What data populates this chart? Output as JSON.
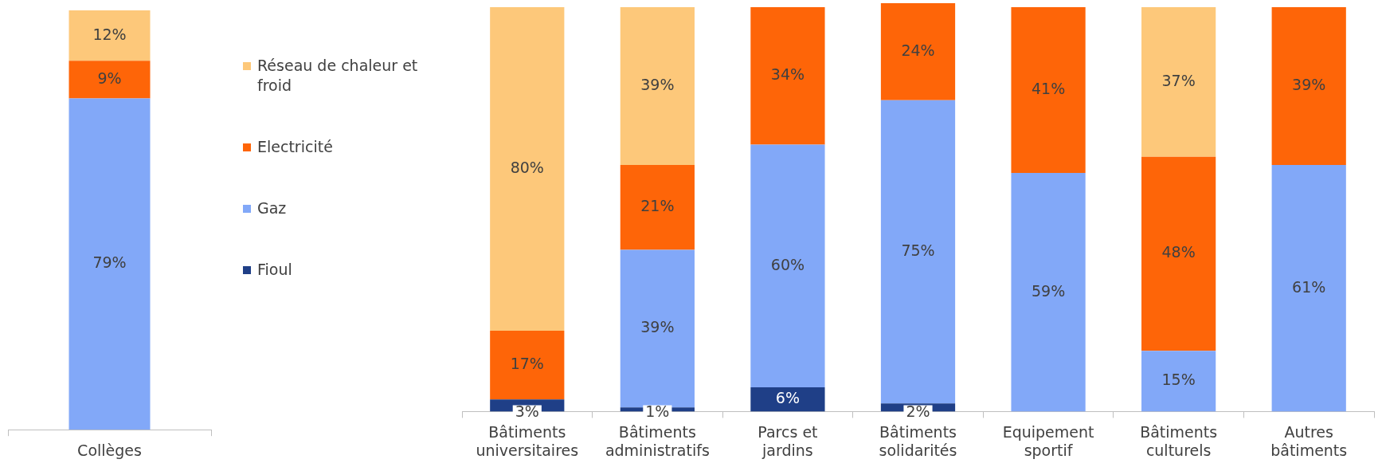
{
  "chart_data": [
    {
      "type": "bar",
      "stacked": true,
      "categories": [
        "Collèges"
      ],
      "legend": "right",
      "tick_labels": "x",
      "series": [
        {
          "name": "Fioul",
          "color": "#1f3f87",
          "values": [
            null
          ],
          "value_labels": [
            null
          ]
        },
        {
          "name": "Gaz",
          "color": "#82a8f8",
          "values": [
            79
          ],
          "value_labels": [
            "79%"
          ]
        },
        {
          "name": "Electricité",
          "color": "#fe6508",
          "values": [
            9
          ],
          "value_labels": [
            "9%"
          ]
        },
        {
          "name": "Réseau de chaleur et froid",
          "color": "#fdc87a",
          "values": [
            12
          ],
          "value_labels": [
            "12%"
          ]
        }
      ]
    },
    {
      "type": "bar",
      "stacked": true,
      "categories": [
        "Bâtiments universitaires",
        "Bâtiments administratifs",
        "Parcs et jardins",
        "Bâtiments solidarités",
        "Equipement sportif",
        "Bâtiments culturels",
        "Autres bâtiments"
      ],
      "legend": false,
      "tick_labels": "x",
      "series": [
        {
          "color": "#1f3f87",
          "values": [
            3,
            1,
            6,
            2,
            null,
            null,
            null
          ],
          "value_labels": [
            "3%",
            "1%",
            "6%",
            "2%",
            null,
            null,
            null
          ]
        },
        {
          "color": "#82a8f8",
          "values": [
            null,
            39,
            60,
            75,
            59,
            15,
            61
          ],
          "value_labels": [
            null,
            "39%",
            "60%",
            "75%",
            "59%",
            "15%",
            "61%"
          ]
        },
        {
          "color": "#fe6508",
          "values": [
            17,
            21,
            34,
            24,
            41,
            48,
            39
          ],
          "value_labels": [
            "17%",
            "21%",
            "34%",
            "24%",
            "41%",
            "48%",
            "39%"
          ]
        },
        {
          "color": "#fdc87a",
          "values": [
            80,
            39,
            null,
            null,
            null,
            37,
            null
          ],
          "value_labels": [
            "80%",
            "39%",
            null,
            null,
            null,
            "37%",
            null
          ]
        }
      ]
    }
  ]
}
